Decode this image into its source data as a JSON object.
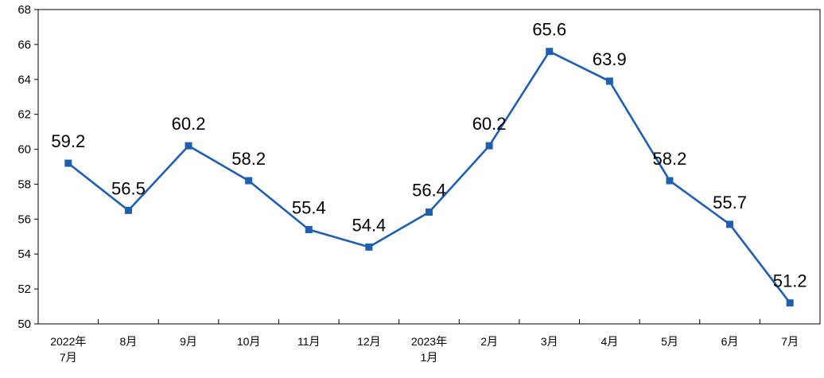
{
  "chart_data": {
    "type": "line",
    "categories": [
      [
        "2022年",
        "7月"
      ],
      [
        "8月"
      ],
      [
        "9月"
      ],
      [
        "10月"
      ],
      [
        "11月"
      ],
      [
        "12月"
      ],
      [
        "2023年",
        "1月"
      ],
      [
        "2月"
      ],
      [
        "3月"
      ],
      [
        "4月"
      ],
      [
        "5月"
      ],
      [
        "6月"
      ],
      [
        "7月"
      ]
    ],
    "values": [
      59.2,
      56.5,
      60.2,
      58.2,
      55.4,
      54.4,
      56.4,
      60.2,
      65.6,
      63.9,
      58.2,
      55.7,
      51.2
    ],
    "data_labels": [
      "59.2",
      "56.5",
      "60.2",
      "58.2",
      "55.4",
      "54.4",
      "56.4",
      "60.2",
      "65.6",
      "63.9",
      "58.2",
      "55.7",
      "51.2"
    ],
    "yticks": [
      "50",
      "52",
      "54",
      "56",
      "58",
      "60",
      "62",
      "64",
      "66",
      "68"
    ],
    "ylim": [
      50,
      68
    ],
    "title": "",
    "xlabel": "",
    "ylabel": "",
    "grid": false,
    "line_color": "#1F5FB0",
    "marker": "square"
  }
}
